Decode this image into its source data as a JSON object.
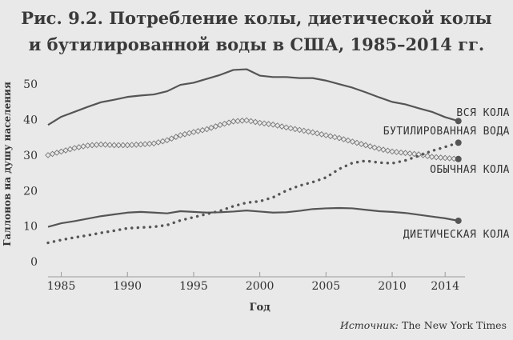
{
  "figure": {
    "title_line1": "Рис. 9.2. Потребление колы, диетической колы",
    "title_line2": "и бутилированной воды в США, 1985–2014 гг.",
    "source_label": "Источник:",
    "source_value": "The New York Times"
  },
  "colors": {
    "background": "#e9e9e9",
    "axis": "#9a9a9a",
    "line": "#555555",
    "marker": "#555555",
    "diamond_stroke": "#777777"
  },
  "chart_data": {
    "type": "line",
    "xlabel": "Год",
    "ylabel": "Галлонов на душу населения",
    "xlim": [
      1984,
      2015.5
    ],
    "ylim": [
      0,
      55
    ],
    "xticks": [
      1985,
      1990,
      1995,
      2000,
      2005,
      2010,
      2014
    ],
    "yticks": [
      0,
      10,
      20,
      30,
      40,
      50
    ],
    "grid": false,
    "legend": "direct labels at line ends (right)",
    "x": [
      1984,
      1985,
      1986,
      1987,
      1988,
      1989,
      1990,
      1991,
      1992,
      1993,
      1994,
      1995,
      1996,
      1997,
      1998,
      1999,
      2000,
      2001,
      2002,
      2003,
      2004,
      2005,
      2006,
      2007,
      2008,
      2009,
      2010,
      2011,
      2012,
      2013,
      2014,
      2015
    ],
    "series": [
      {
        "name": "ВСЯ КОЛА",
        "style": "solid",
        "values": [
          38.5,
          40.8,
          42.2,
          43.6,
          44.9,
          45.6,
          46.4,
          46.8,
          47.1,
          48.0,
          49.8,
          50.4,
          51.5,
          52.6,
          54.0,
          54.2,
          52.4,
          52.0,
          52.0,
          51.7,
          51.7,
          51.0,
          50.0,
          49.0,
          47.7,
          46.3,
          45.0,
          44.3,
          43.2,
          42.2,
          40.7,
          39.6
        ]
      },
      {
        "name": "БУТИЛИРОВАННАЯ ВОДА",
        "style": "dotted-markers",
        "values": [
          5.3,
          6.1,
          6.8,
          7.4,
          8.1,
          8.7,
          9.4,
          9.6,
          9.8,
          10.3,
          11.6,
          12.5,
          13.4,
          14.3,
          15.6,
          16.6,
          17.0,
          18.1,
          20.0,
          21.4,
          22.4,
          23.7,
          26.1,
          27.8,
          28.4,
          27.9,
          27.7,
          28.5,
          29.8,
          31.2,
          32.3,
          33.5
        ]
      },
      {
        "name": "ОБЫЧНАЯ КОЛА",
        "style": "diamond-markers",
        "values": [
          30.0,
          31.0,
          32.0,
          32.7,
          33.0,
          32.8,
          32.8,
          33.0,
          33.3,
          34.2,
          35.6,
          36.5,
          37.3,
          38.5,
          39.5,
          39.8,
          39.1,
          38.6,
          37.8,
          37.1,
          36.4,
          35.6,
          34.8,
          33.8,
          32.8,
          31.8,
          31.0,
          30.6,
          30.2,
          29.5,
          29.2,
          28.9
        ]
      },
      {
        "name": "ДИЕТИЧЕСКАЯ КОЛА",
        "style": "solid",
        "values": [
          9.8,
          10.8,
          11.4,
          12.1,
          12.8,
          13.3,
          13.8,
          14.0,
          13.8,
          13.6,
          14.2,
          14.0,
          13.8,
          13.9,
          14.1,
          14.4,
          14.1,
          13.8,
          13.9,
          14.3,
          14.8,
          15.0,
          15.1,
          15.0,
          14.6,
          14.2,
          14.0,
          13.7,
          13.2,
          12.7,
          12.2,
          11.5
        ]
      }
    ]
  }
}
